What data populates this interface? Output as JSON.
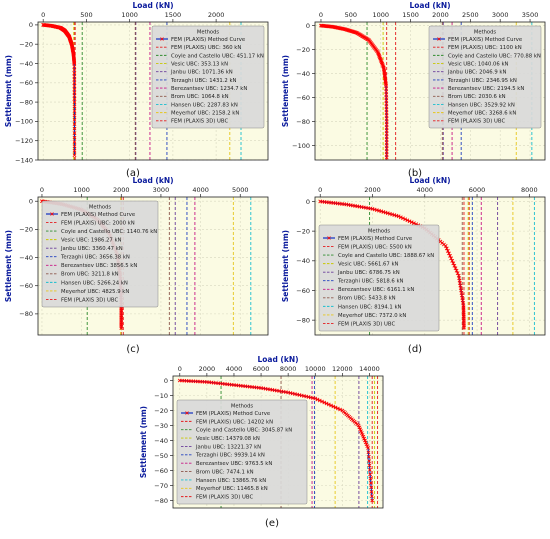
{
  "chart_data": [
    {
      "type": "line",
      "panel_label": "(a)",
      "xlabel": "Load (kN)",
      "ylabel": "Settlement (mm)",
      "xlim": [
        -60,
        2600
      ],
      "ylim": [
        -140,
        3
      ],
      "xticks": [
        0,
        500,
        1000,
        1500,
        2000
      ],
      "yticks": [
        0,
        -20,
        -40,
        -60,
        -80,
        -100,
        -120,
        -140
      ],
      "grid": true,
      "legend": {
        "title": "Methods",
        "placement": "top-right"
      },
      "fem_curve": {
        "name": "FEM (PLAXIS) Method Curve",
        "x": [
          0,
          100,
          200,
          250,
          300,
          330,
          350,
          360,
          362,
          362
        ],
        "y": [
          0,
          -1,
          -3,
          -6,
          -12,
          -20,
          -30,
          -40,
          -80,
          -135
        ]
      },
      "methods": [
        {
          "name": "FEM (PLAXIS) UBC: 360 kN",
          "value": 360,
          "color": "#e41a1c"
        },
        {
          "name": "Coyle and Castello UBC: 451.17 kN",
          "value": 451.17,
          "color": "#2e8b2e"
        },
        {
          "name": "Vesic UBC: 353.13 kN",
          "value": 353.13,
          "color": "#c8c800"
        },
        {
          "name": "Janbu UBC: 1071.36 kN",
          "value": 1071.36,
          "color": "#6a3d9a"
        },
        {
          "name": "Terzaghi UBC: 1431.2 kN",
          "value": 1431.2,
          "color": "#1f3fbf"
        },
        {
          "name": "Berezantsev UBC: 1234.7 kN",
          "value": 1234.7,
          "color": "#c71585"
        },
        {
          "name": "Brom UBC: 1064.8 kN",
          "value": 1064.8,
          "color": "#8c564b"
        },
        {
          "name": "Hansen UBC: 2287.83 kN",
          "value": 2287.83,
          "color": "#17becf"
        },
        {
          "name": "Meyerhof UBC: 2158.2 kN",
          "value": 2158.2,
          "color": "#e6c619"
        },
        {
          "name": "FEM (PLAXIS 3D) UBC",
          "value": 370,
          "color": "#e41a1c"
        }
      ]
    },
    {
      "type": "line",
      "panel_label": "(b)",
      "xlabel": "Load (kN)",
      "ylabel": "Settlement (mm)",
      "xlim": [
        -100,
        3750
      ],
      "ylim": [
        -112,
        3
      ],
      "xticks": [
        0,
        500,
        1000,
        1500,
        2000,
        2500,
        3000,
        3500
      ],
      "yticks": [
        0,
        -20,
        -40,
        -60,
        -80,
        -100
      ],
      "grid": true,
      "legend": {
        "title": "Methods",
        "placement": "top-right"
      },
      "fem_curve": {
        "name": "FEM (PLAXIS) Method Curve",
        "x": [
          0,
          200,
          400,
          600,
          800,
          950,
          1050,
          1090,
          1100,
          1100
        ],
        "y": [
          0,
          -1,
          -3,
          -6,
          -12,
          -22,
          -35,
          -50,
          -80,
          -110
        ]
      },
      "methods": [
        {
          "name": "FEM (PLAXIS) UBC: 1100 kN",
          "value": 1100,
          "color": "#e41a1c"
        },
        {
          "name": "Coyle and Castello UBC: 770.88 kN",
          "value": 770.88,
          "color": "#2e8b2e"
        },
        {
          "name": "Vesic UBC: 1040.06 kN",
          "value": 1040.06,
          "color": "#c8c800"
        },
        {
          "name": "Janbu UBC: 2046.9 kN",
          "value": 2046.9,
          "color": "#6a3d9a"
        },
        {
          "name": "Terzaghi UBC: 2346.95 kN",
          "value": 2346.95,
          "color": "#1f3fbf"
        },
        {
          "name": "Berezantsev UBC: 2194.5 kN",
          "value": 2194.5,
          "color": "#c71585"
        },
        {
          "name": "Brom UBC: 2030.6 kN",
          "value": 2030.6,
          "color": "#8c564b"
        },
        {
          "name": "Hansen UBC: 3529.92 kN",
          "value": 3529.92,
          "color": "#17becf"
        },
        {
          "name": "Meyerhof UBC: 3268.6 kN",
          "value": 3268.6,
          "color": "#e6c619"
        },
        {
          "name": "FEM (PLAXIS 3D) UBC",
          "value": 1250,
          "color": "#e41a1c"
        }
      ]
    },
    {
      "type": "line",
      "panel_label": "(c)",
      "xlabel": "Load (kN)",
      "ylabel": "Settlement (mm)",
      "xlim": [
        -100,
        5700
      ],
      "ylim": [
        -95,
        3
      ],
      "xticks": [
        0,
        1000,
        2000,
        3000,
        4000,
        5000
      ],
      "yticks": [
        0,
        -20,
        -40,
        -60,
        -80
      ],
      "grid": true,
      "legend": {
        "title": "Methods",
        "placement": "top-left"
      },
      "fem_curve": {
        "name": "FEM (PLAXIS) Method Curve",
        "x": [
          0,
          500,
          1000,
          1400,
          1700,
          1900,
          1980,
          2000,
          2000
        ],
        "y": [
          0,
          -2,
          -6,
          -13,
          -23,
          -38,
          -55,
          -75,
          -90
        ]
      },
      "methods": [
        {
          "name": "FEM (PLAXIS) UBC: 2000 kN",
          "value": 2000,
          "color": "#e41a1c"
        },
        {
          "name": "Coyle and Castello UBC: 1140.76 kN",
          "value": 1140.76,
          "color": "#2e8b2e"
        },
        {
          "name": "Vesic UBC: 1986.27 kN",
          "value": 1986.27,
          "color": "#c8c800"
        },
        {
          "name": "Janbu UBC: 3360.47 kN",
          "value": 3360.47,
          "color": "#6a3d9a"
        },
        {
          "name": "Terzaghi UBC: 3656.38 kN",
          "value": 3656.38,
          "color": "#1f3fbf"
        },
        {
          "name": "Berezantsev UBC: 3856.5 kN",
          "value": 3856.5,
          "color": "#c71585"
        },
        {
          "name": "Brom UBC: 3211.8 kN",
          "value": 3211.8,
          "color": "#8c564b"
        },
        {
          "name": "Hansen UBC: 5266.24 kN",
          "value": 5266.24,
          "color": "#17becf"
        },
        {
          "name": "Meyerhof UBC: 4825.9 kN",
          "value": 4825.9,
          "color": "#e6c619"
        },
        {
          "name": "FEM (PLAXIS 3D) UBC",
          "value": 2050,
          "color": "#e41a1c"
        }
      ]
    },
    {
      "type": "line",
      "panel_label": "(d)",
      "xlabel": "Load (kN)",
      "ylabel": "Settlement (mm)",
      "xlim": [
        -200,
        8600
      ],
      "ylim": [
        -90,
        3
      ],
      "xticks": [
        0,
        2000,
        4000,
        6000,
        8000
      ],
      "yticks": [
        0,
        -20,
        -40,
        -60,
        -80
      ],
      "grid": true,
      "legend": {
        "title": "Methods",
        "placement": "bottom-left"
      },
      "fem_curve": {
        "name": "FEM (PLAXIS) Method Curve",
        "x": [
          0,
          1000,
          2000,
          3000,
          4000,
          4800,
          5300,
          5480,
          5500
        ],
        "y": [
          0,
          -2,
          -5,
          -10,
          -18,
          -30,
          -50,
          -70,
          -85
        ]
      },
      "methods": [
        {
          "name": "FEM (PLAXIS) UBC: 5500 kN",
          "value": 5500,
          "color": "#e41a1c"
        },
        {
          "name": "Coyle and Castello UBC: 1888.67 kN",
          "value": 1888.67,
          "color": "#2e8b2e"
        },
        {
          "name": "Vesic UBC: 5661.67 kN",
          "value": 5661.67,
          "color": "#c8c800"
        },
        {
          "name": "Janbu UBC: 6786.75 kN",
          "value": 6786.75,
          "color": "#6a3d9a"
        },
        {
          "name": "Terzaghi UBC: 5818.6 kN",
          "value": 5818.6,
          "color": "#1f3fbf"
        },
        {
          "name": "Berezantsev UBC: 6161.1 kN",
          "value": 6161.1,
          "color": "#c71585"
        },
        {
          "name": "Brom UBC: 5433.8 kN",
          "value": 5433.8,
          "color": "#8c564b"
        },
        {
          "name": "Hansen UBC: 8194.1 kN",
          "value": 8194.1,
          "color": "#17becf"
        },
        {
          "name": "Meyerhof UBC: 7372.0 kN",
          "value": 7372.0,
          "color": "#e6c619"
        },
        {
          "name": "FEM (PLAXIS 3D) UBC",
          "value": 5700,
          "color": "#e41a1c"
        }
      ]
    },
    {
      "type": "line",
      "panel_label": "(e)",
      "xlabel": "Load (kN)",
      "ylabel": "Settlement (mm)",
      "xlim": [
        -500,
        15000
      ],
      "ylim": [
        -85,
        3
      ],
      "xticks": [
        0,
        2000,
        4000,
        6000,
        8000,
        10000,
        12000,
        14000
      ],
      "yticks": [
        0,
        -10,
        -20,
        -30,
        -40,
        -50,
        -60,
        -70,
        -80
      ],
      "grid": true,
      "legend": {
        "title": "Methods",
        "placement": "bottom-left"
      },
      "fem_curve": {
        "name": "FEM (PLAXIS) Method Curve",
        "x": [
          0,
          2000,
          4000,
          6000,
          8000,
          10000,
          12000,
          13200,
          13900,
          14202
        ],
        "y": [
          0,
          -1,
          -3,
          -5,
          -8,
          -12,
          -20,
          -30,
          -45,
          -80
        ]
      },
      "methods": [
        {
          "name": "FEM (PLAXIS) UBC: 14202 kN",
          "value": 14202,
          "color": "#e41a1c"
        },
        {
          "name": "Coyle and Castello UBC: 3045.87 kN",
          "value": 3045.87,
          "color": "#2e8b2e"
        },
        {
          "name": "Vesic UBC: 14379.08 kN",
          "value": 14379.08,
          "color": "#c8c800"
        },
        {
          "name": "Janbu UBC: 13221.37 kN",
          "value": 13221.37,
          "color": "#6a3d9a"
        },
        {
          "name": "Terzaghi UBC: 9939.14 kN",
          "value": 9939.14,
          "color": "#1f3fbf"
        },
        {
          "name": "Berezantsev UBC: 9763.5 kN",
          "value": 9763.5,
          "color": "#c71585"
        },
        {
          "name": "Brom UBC: 7474.1 kN",
          "value": 7474.1,
          "color": "#8c564b"
        },
        {
          "name": "Hansen UBC: 13865.76 kN",
          "value": 13865.76,
          "color": "#17becf"
        },
        {
          "name": "Meyerhof UBC: 11465.8 kN",
          "value": 11465.8,
          "color": "#e6c619"
        },
        {
          "name": "FEM (PLAXIS 3D) UBC",
          "value": 14600,
          "color": "#e41a1c"
        }
      ]
    }
  ],
  "colors": {
    "panel_bg": "#fbfbe3",
    "legend_bg": "#d9d9d9",
    "fem_curve": "#1030c0",
    "fem_marker": "#ff0000",
    "axis_label": "#0a1a9c"
  }
}
